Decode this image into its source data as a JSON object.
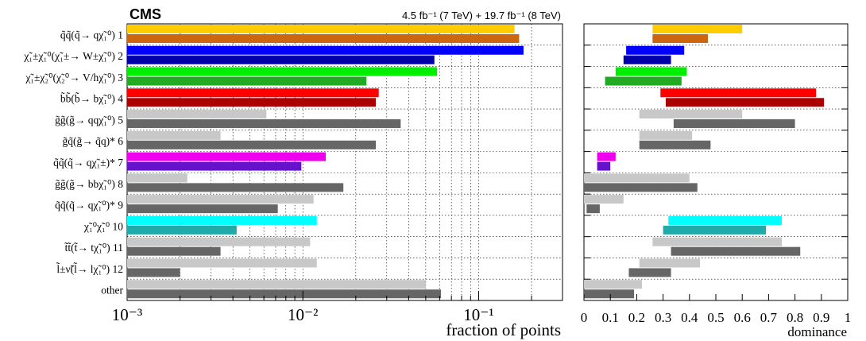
{
  "header": {
    "experiment": "CMS",
    "lumi": "4.5 fb⁻¹ (7 TeV) + 19.7 fb⁻¹ (8 TeV)"
  },
  "chart_data": [
    {
      "type": "bar",
      "orientation": "horizontal",
      "xscale": "log",
      "xlim": [
        0.001,
        0.3
      ],
      "xlabel": "fraction of points",
      "xticks": [
        "10⁻³",
        "10⁻²",
        "10⁻¹"
      ],
      "grid": true,
      "categories": [
        "q̃q̃(q̃→ qχ̃₁⁰) 1",
        "χ̃₁±χ̃₁⁰(χ̃₁±→ W±χ̃₁⁰) 2",
        "χ̃₁±χ̃₂⁰(χ̃₂⁰→ V/hχ̃₁⁰) 3",
        "b̃b̃(b̃→ bχ̃₁⁰) 4",
        "g̃g̃(g̃→ qqχ̃₁⁰) 5",
        "g̃q̃(g̃→ q̃q)* 6",
        "q̃q̃(q̃→ qχ̃₁±)* 7",
        "g̃g̃(g̃→ bbχ̃₁⁰) 8",
        "q̃q̃(q̃→ qχ̃₁⁰)* 9",
        "χ̃₁⁰χ̃₁⁰ 10",
        "t̃t̃(t̃→ tχ̃₁⁰) 11",
        "l̃±ν̃(l̃→ lχ̃₁⁰) 12",
        "other"
      ],
      "series": [
        {
          "values": [
            0.16,
            0.18,
            0.058,
            0.027,
            0.0062,
            0.0034,
            0.0135,
            0.0022,
            0.0115,
            0.012,
            0.011,
            0.012,
            0.05
          ],
          "colors": [
            "#ffcc00",
            "#0000ff",
            "#00ee00",
            "#ff0000",
            "#c8c8c8",
            "#c8c8c8",
            "#ee00ee",
            "#c8c8c8",
            "#c8c8c8",
            "#00ffff",
            "#c8c8c8",
            "#c8c8c8",
            "#c8c8c8"
          ]
        },
        {
          "values": [
            0.17,
            0.056,
            0.023,
            0.026,
            0.036,
            0.026,
            0.0098,
            0.017,
            0.0072,
            0.0042,
            0.0034,
            0.002,
            0.061
          ],
          "colors": [
            "#cc6611",
            "#0000aa",
            "#22aa22",
            "#aa0000",
            "#666666",
            "#666666",
            "#6611cc",
            "#666666",
            "#666666",
            "#22aaaa",
            "#666666",
            "#666666",
            "#666666"
          ]
        }
      ]
    },
    {
      "type": "bar",
      "orientation": "horizontal",
      "floating": true,
      "xlim": [
        0,
        1
      ],
      "xlabel": "dominance",
      "xticks": [
        "0",
        "0.1",
        "0.2",
        "0.3",
        "0.4",
        "0.5",
        "0.6",
        "0.7",
        "0.8",
        "0.9",
        "1"
      ],
      "grid": true,
      "series": [
        {
          "ranges": [
            [
              0.26,
              0.6
            ],
            [
              0.16,
              0.38
            ],
            [
              0.12,
              0.39
            ],
            [
              0.29,
              0.88
            ],
            [
              0.21,
              0.6
            ],
            [
              0.21,
              0.41
            ],
            [
              0.05,
              0.12
            ],
            [
              0.0,
              0.4
            ],
            [
              0.0,
              0.15
            ],
            [
              0.32,
              0.75
            ],
            [
              0.26,
              0.75
            ],
            [
              0.21,
              0.44
            ],
            [
              0.0,
              0.22
            ]
          ],
          "colors": [
            "#ffcc00",
            "#0000ff",
            "#00ee00",
            "#ff0000",
            "#c8c8c8",
            "#c8c8c8",
            "#ee00ee",
            "#c8c8c8",
            "#c8c8c8",
            "#00ffff",
            "#c8c8c8",
            "#c8c8c8",
            "#c8c8c8"
          ]
        },
        {
          "ranges": [
            [
              0.26,
              0.47
            ],
            [
              0.15,
              0.33
            ],
            [
              0.08,
              0.37
            ],
            [
              0.31,
              0.91
            ],
            [
              0.34,
              0.8
            ],
            [
              0.21,
              0.48
            ],
            [
              0.05,
              0.1
            ],
            [
              0.0,
              0.43
            ],
            [
              0.01,
              0.06
            ],
            [
              0.3,
              0.69
            ],
            [
              0.33,
              0.82
            ],
            [
              0.17,
              0.33
            ],
            [
              0.0,
              0.19
            ]
          ],
          "colors": [
            "#cc6611",
            "#0000aa",
            "#22aa22",
            "#aa0000",
            "#666666",
            "#666666",
            "#6611cc",
            "#666666",
            "#666666",
            "#22aaaa",
            "#666666",
            "#666666",
            "#666666"
          ]
        }
      ]
    }
  ]
}
